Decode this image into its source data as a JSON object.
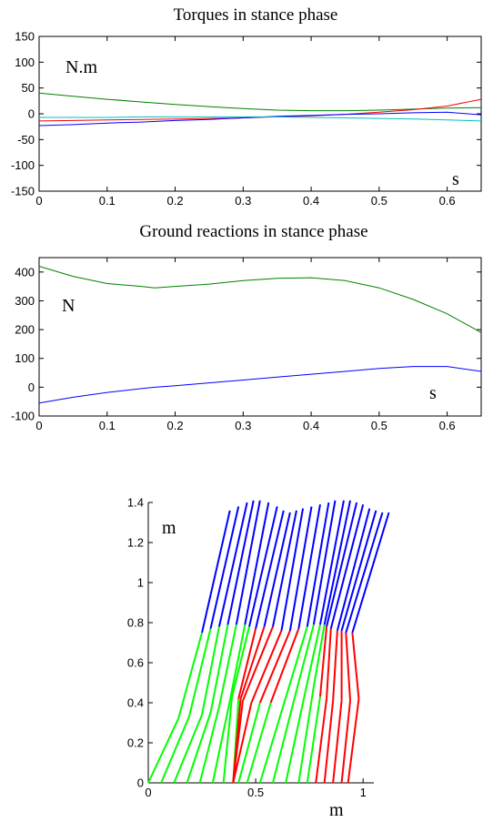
{
  "chart_data": [
    {
      "type": "line",
      "title": "Torques in stance phase",
      "y_unit": "N.m",
      "x_unit": "s",
      "xlim": [
        0,
        0.65
      ],
      "ylim": [
        -150,
        150
      ],
      "x_ticks": [
        "0",
        "0.1",
        "0.2",
        "0.3",
        "0.4",
        "0.5",
        "0.6"
      ],
      "y_ticks": [
        "150",
        "100",
        "50",
        "0",
        "-50",
        "-100",
        "-150"
      ],
      "grid": false,
      "x": [
        0,
        0.05,
        0.1,
        0.15,
        0.2,
        0.25,
        0.3,
        0.35,
        0.4,
        0.45,
        0.5,
        0.55,
        0.6,
        0.65
      ],
      "series": [
        {
          "color": "#008000",
          "values": [
            40,
            34,
            28,
            23,
            18,
            14,
            10,
            7,
            6,
            6,
            7,
            9,
            11,
            12
          ]
        },
        {
          "color": "#ff0000",
          "values": [
            -14,
            -13,
            -12,
            -11,
            -10,
            -9,
            -8,
            -6,
            -4,
            -1,
            3,
            8,
            15,
            28
          ]
        },
        {
          "color": "#0000ff",
          "values": [
            -23,
            -21,
            -18,
            -16,
            -13,
            -11,
            -8,
            -5,
            -3,
            -1,
            0,
            2,
            3,
            -2
          ]
        },
        {
          "color": "#00bfbf",
          "values": [
            -7,
            -7,
            -7,
            -6,
            -6,
            -6,
            -6,
            -6,
            -7,
            -8,
            -9,
            -10,
            -12,
            -14
          ]
        }
      ]
    },
    {
      "type": "line",
      "title": "Ground reactions in stance phase",
      "y_unit": "N",
      "x_unit": "s",
      "xlim": [
        0,
        0.65
      ],
      "ylim": [
        -100,
        450
      ],
      "x_ticks": [
        "0",
        "0.1",
        "0.2",
        "0.3",
        "0.4",
        "0.5",
        "0.6"
      ],
      "y_ticks": [
        "400",
        "300",
        "200",
        "100",
        "0",
        "-100"
      ],
      "grid": false,
      "x": [
        0,
        0.05,
        0.1,
        0.15,
        0.17,
        0.2,
        0.25,
        0.3,
        0.35,
        0.4,
        0.45,
        0.5,
        0.55,
        0.6,
        0.65
      ],
      "series": [
        {
          "color": "#008000",
          "values": [
            420,
            385,
            360,
            350,
            345,
            350,
            358,
            370,
            378,
            380,
            370,
            345,
            305,
            255,
            190
          ]
        },
        {
          "color": "#0000ff",
          "values": [
            -55,
            -35,
            -18,
            -5,
            0,
            5,
            15,
            25,
            35,
            45,
            55,
            65,
            72,
            72,
            55
          ]
        }
      ]
    },
    {
      "type": "line",
      "title": "",
      "y_unit": "m",
      "x_unit": "m",
      "xlim": [
        0,
        1.05
      ],
      "ylim": [
        0,
        1.4
      ],
      "x_ticks": [
        "0",
        "0.5",
        "1"
      ],
      "y_ticks": [
        "1.4",
        "1.2",
        "1",
        "0.8",
        "0.6",
        "0.4",
        "0.2",
        "0"
      ],
      "grid": false,
      "legs": [
        {
          "toe": 0,
          "knee": [
            0.14,
            0.32
          ],
          "hip": [
            0.25,
            0.75
          ],
          "head": [
            0.38,
            1.36
          ],
          "thigh_color": "#00ff00",
          "shank_color": "#00ff00"
        },
        {
          "toe": 0.06,
          "knee": [
            0.19,
            0.33
          ],
          "hip": [
            0.29,
            0.77
          ],
          "head": [
            0.42,
            1.38
          ],
          "thigh_color": "#00ff00",
          "shank_color": "#00ff00"
        },
        {
          "toe": 0.12,
          "knee": [
            0.25,
            0.34
          ],
          "hip": [
            0.33,
            0.78
          ],
          "head": [
            0.46,
            1.4
          ],
          "thigh_color": "#00ff00",
          "shank_color": "#00ff00"
        },
        {
          "toe": 0.18,
          "knee": [
            0.29,
            0.35
          ],
          "hip": [
            0.37,
            0.79
          ],
          "head": [
            0.49,
            1.41
          ],
          "thigh_color": "#00ff00",
          "shank_color": "#00ff00"
        },
        {
          "toe": 0.24,
          "knee": [
            0.33,
            0.38
          ],
          "hip": [
            0.41,
            0.79
          ],
          "head": [
            0.52,
            1.41
          ],
          "thigh_color": "#00ff00",
          "shank_color": "#00ff00"
        },
        {
          "toe": 0.3,
          "knee": [
            0.38,
            0.41
          ],
          "hip": [
            0.45,
            0.79
          ],
          "head": [
            0.56,
            1.4
          ],
          "thigh_color": "#00ff00",
          "shank_color": "#00ff00"
        },
        {
          "toe": 0.35,
          "knee": [
            0.39,
            0.43
          ],
          "hip": [
            0.47,
            0.78
          ],
          "head": [
            0.6,
            1.38
          ],
          "thigh_color": "#00ff00",
          "shank_color": "#00ff00"
        },
        {
          "toe": 0.395,
          "knee": [
            0.42,
            0.42
          ],
          "hip": [
            0.5,
            0.77
          ],
          "head": [
            0.63,
            1.36
          ],
          "thigh_color": "#ff0000",
          "shank_color": "#00ff00"
        },
        {
          "toe": 0.395,
          "knee": [
            0.43,
            0.42
          ],
          "hip": [
            0.54,
            0.78
          ],
          "head": [
            0.66,
            1.35
          ],
          "thigh_color": "#ff0000",
          "shank_color": "#ff0000"
        },
        {
          "toe": 0.395,
          "knee": [
            0.44,
            0.41
          ],
          "hip": [
            0.58,
            0.78
          ],
          "head": [
            0.69,
            1.36
          ],
          "thigh_color": "#ff0000",
          "shank_color": "#ff0000"
        },
        {
          "toe": 0.395,
          "knee": [
            0.48,
            0.4
          ],
          "hip": [
            0.62,
            0.76
          ],
          "head": [
            0.72,
            1.37
          ],
          "thigh_color": "#ff0000",
          "shank_color": "#ff0000"
        },
        {
          "toe": 0.42,
          "knee": [
            0.52,
            0.4
          ],
          "hip": [
            0.66,
            0.76
          ],
          "head": [
            0.76,
            1.38
          ],
          "thigh_color": "#ff0000",
          "shank_color": "#00ff00"
        },
        {
          "toe": 0.46,
          "knee": [
            0.57,
            0.4
          ],
          "hip": [
            0.7,
            0.77
          ],
          "head": [
            0.8,
            1.39
          ],
          "thigh_color": "#ff0000",
          "shank_color": "#00ff00"
        },
        {
          "toe": 0.52,
          "knee": [
            0.63,
            0.39
          ],
          "hip": [
            0.74,
            0.78
          ],
          "head": [
            0.84,
            1.4
          ],
          "thigh_color": "#00ff00",
          "shank_color": "#00ff00"
        },
        {
          "toe": 0.58,
          "knee": [
            0.68,
            0.42
          ],
          "hip": [
            0.77,
            0.79
          ],
          "head": [
            0.87,
            1.41
          ],
          "thigh_color": "#00ff00",
          "shank_color": "#00ff00"
        },
        {
          "toe": 0.64,
          "knee": [
            0.73,
            0.45
          ],
          "hip": [
            0.8,
            0.79
          ],
          "head": [
            0.91,
            1.41
          ],
          "thigh_color": "#00ff00",
          "shank_color": "#00ff00"
        },
        {
          "toe": 0.7,
          "knee": [
            0.77,
            0.48
          ],
          "hip": [
            0.82,
            0.79
          ],
          "head": [
            0.94,
            1.41
          ],
          "thigh_color": "#00ff00",
          "shank_color": "#00ff00"
        },
        {
          "toe": 0.74,
          "knee": [
            0.8,
            0.43
          ],
          "hip": [
            0.83,
            0.78
          ],
          "head": [
            0.97,
            1.4
          ],
          "thigh_color": "#ff0000",
          "shank_color": "#00ff00"
        },
        {
          "toe": 0.78,
          "knee": [
            0.83,
            0.42
          ],
          "hip": [
            0.85,
            0.77
          ],
          "head": [
            1.0,
            1.39
          ],
          "thigh_color": "#ff0000",
          "shank_color": "#ff0000"
        },
        {
          "toe": 0.82,
          "knee": [
            0.86,
            0.41
          ],
          "hip": [
            0.88,
            0.76
          ],
          "head": [
            1.03,
            1.37
          ],
          "thigh_color": "#ff0000",
          "shank_color": "#ff0000"
        },
        {
          "toe": 0.86,
          "knee": [
            0.9,
            0.41
          ],
          "hip": [
            0.9,
            0.76
          ],
          "head": [
            1.06,
            1.36
          ],
          "thigh_color": "#ff0000",
          "shank_color": "#ff0000"
        },
        {
          "toe": 0.9,
          "knee": [
            0.94,
            0.41
          ],
          "hip": [
            0.92,
            0.75
          ],
          "head": [
            1.09,
            1.35
          ],
          "thigh_color": "#ff0000",
          "shank_color": "#ff0000"
        },
        {
          "toe": 0.93,
          "knee": [
            0.98,
            0.42
          ],
          "hip": [
            0.95,
            0.75
          ],
          "head": [
            1.12,
            1.35
          ],
          "thigh_color": "#ff0000",
          "shank_color": "#ff0000"
        }
      ]
    }
  ]
}
